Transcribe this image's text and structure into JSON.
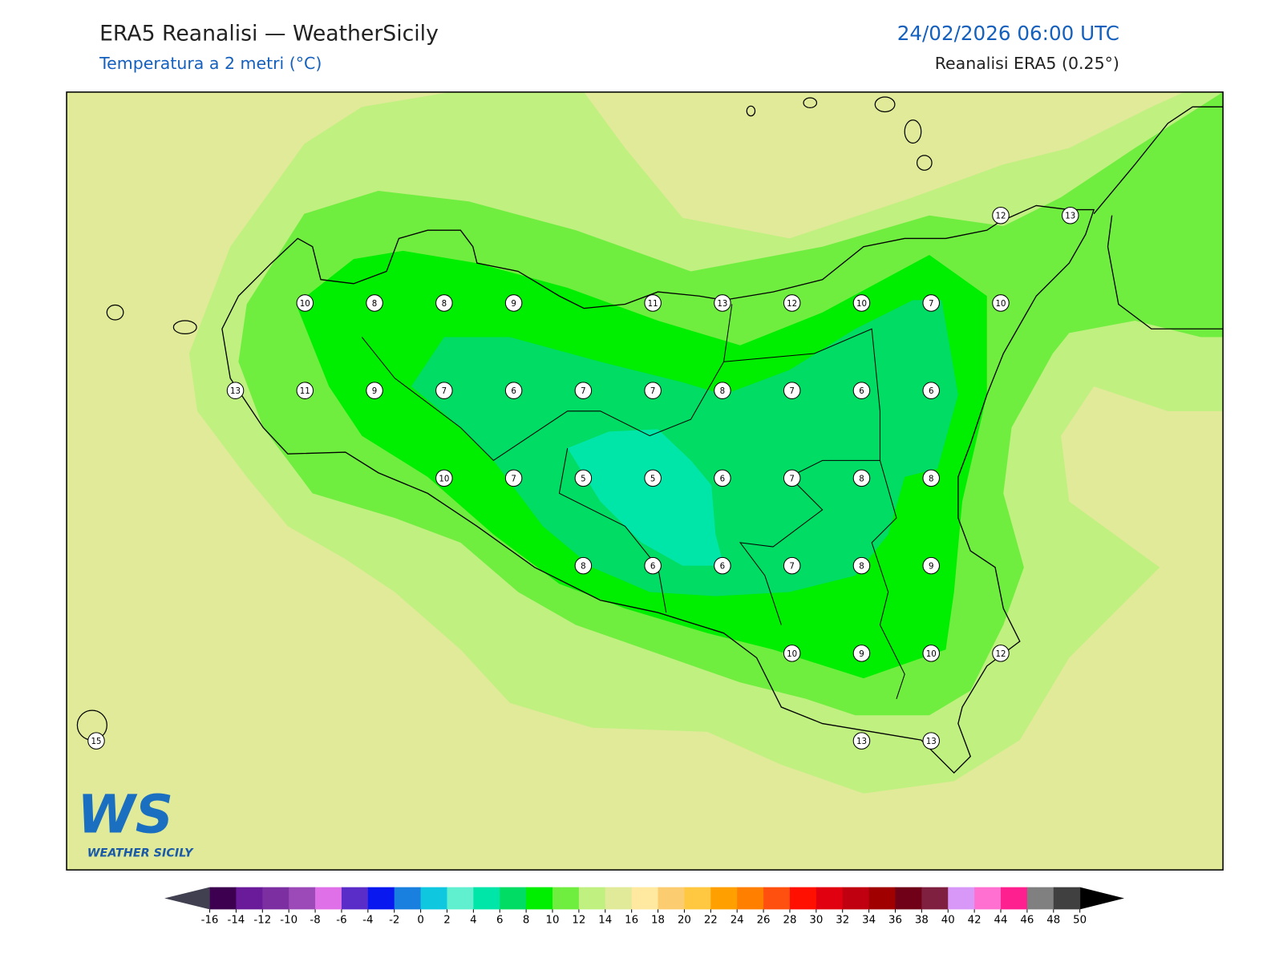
{
  "header": {
    "title": "ERA5 Reanalisi — WeatherSicily",
    "subtitle": "Temperatura a 2 metri (°C)",
    "datetime": "24/02/2026 06:00 UTC",
    "source": "Reanalisi ERA5 (0.25°)"
  },
  "map": {
    "stations": [
      12,
      13,
      10,
      8,
      8,
      9,
      11,
      13,
      12,
      10,
      7,
      10,
      13,
      11,
      9,
      7,
      6,
      7,
      7,
      8,
      7,
      6,
      6,
      10,
      7,
      5,
      5,
      6,
      7,
      8,
      8,
      8,
      6,
      6,
      7,
      8,
      9,
      10,
      9,
      10,
      12,
      15,
      13,
      13
    ]
  },
  "colorbar": {
    "levels": [
      -16,
      -14,
      -12,
      -10,
      -8,
      -6,
      -4,
      -2,
      0,
      2,
      4,
      6,
      8,
      10,
      12,
      14,
      16,
      18,
      20,
      22,
      24,
      26,
      28,
      30,
      32,
      34,
      36,
      38,
      40,
      42,
      44,
      46,
      48,
      50
    ],
    "colors": [
      "#3d0050",
      "#6a1b9a",
      "#7b2fa0",
      "#9c4ab8",
      "#e070e8",
      "#5a2cc8",
      "#0a18f0",
      "#1a80e0",
      "#0fc8e0",
      "#60f0d0",
      "#00e6a8",
      "#00dc64",
      "#00ee00",
      "#70ee40",
      "#c0f080",
      "#e0ea98",
      "#ffe8a0",
      "#fccc70",
      "#ffc840",
      "#ffa000",
      "#ff8000",
      "#ff5010",
      "#ff1000",
      "#e00010",
      "#c00010",
      "#a00000",
      "#700018",
      "#802040",
      "#d898f8",
      "#ff70d0",
      "#ff2090",
      "#808080",
      "#404040"
    ],
    "under_color": "#404050",
    "over_color": "#000000"
  },
  "logo": {
    "mark": "WS",
    "name": "WEATHER SICILY"
  }
}
